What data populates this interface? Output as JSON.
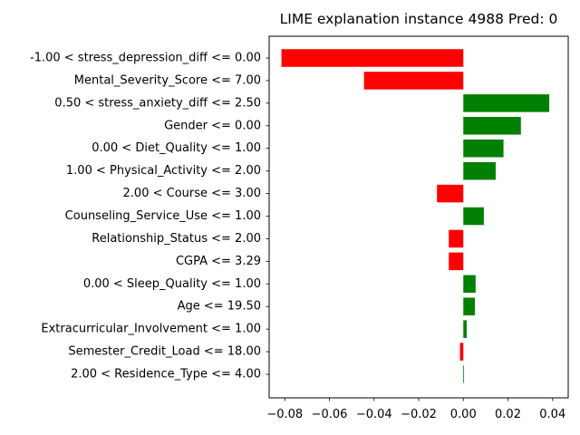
{
  "chart_data": {
    "type": "bar",
    "orientation": "horizontal",
    "title": "LIME explanation instance 4988 Pred: 0",
    "xlabel": "",
    "ylabel": "",
    "xlim": [
      -0.087,
      0.047
    ],
    "xticks": [
      -0.08,
      -0.06,
      -0.04,
      -0.02,
      0.0,
      0.02,
      0.04
    ],
    "xtick_labels": [
      "−0.08",
      "−0.06",
      "−0.04",
      "−0.02",
      "0.00",
      "0.02",
      "0.04"
    ],
    "grid": false,
    "positive_color": "#008000",
    "negative_color": "#ff0000",
    "categories": [
      "-1.00 < stress_depression_diff <= 0.00",
      "Mental_Severity_Score <= 7.00",
      "0.50 < stress_anxiety_diff <= 2.50",
      "Gender <= 0.00",
      "0.00 < Diet_Quality <= 1.00",
      "1.00 < Physical_Activity <= 2.00",
      "2.00 < Course <= 3.00",
      "Counseling_Service_Use <= 1.00",
      "Relationship_Status <= 2.00",
      "CGPA <= 3.29",
      "0.00 < Sleep_Quality <= 1.00",
      "Age <= 19.50",
      "Extracurricular_Involvement <= 1.00",
      "Semester_Credit_Load <= 18.00",
      "2.00 < Residence_Type <= 4.00"
    ],
    "values": [
      -0.0815,
      -0.0445,
      0.0385,
      0.0258,
      0.018,
      0.0145,
      -0.0118,
      0.0092,
      -0.0065,
      -0.0065,
      0.0055,
      0.0052,
      0.0015,
      -0.0015,
      0.0003
    ]
  }
}
